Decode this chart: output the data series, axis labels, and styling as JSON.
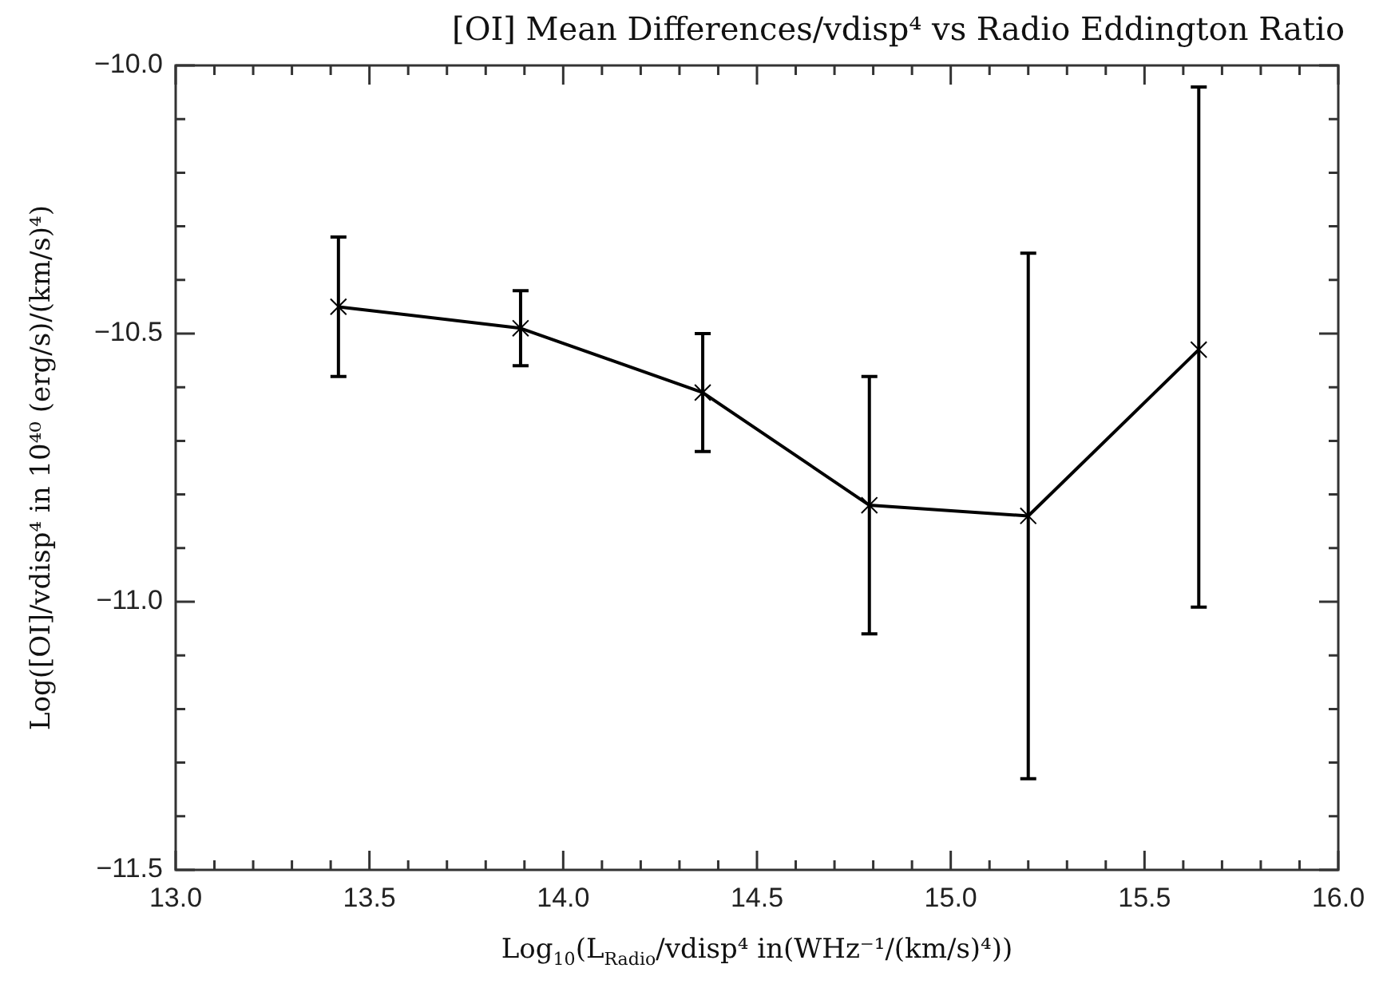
{
  "chart_data": {
    "type": "line",
    "title": "[OI] Mean Differences/vdisp⁴ vs Radio Eddington Ratio",
    "xlabel": "Log$_{10}$(L$_{Radio}$/vdisp⁴ in(WHz⁻¹/(km/s)⁴))",
    "ylabel": "Log([OI]/vdisp⁴ in 10⁴⁰ (erg/s)/(km/s)⁴)",
    "x": [
      13.42,
      13.89,
      14.36,
      14.79,
      15.2,
      15.64
    ],
    "series": [
      {
        "color": "#000000",
        "values": [
          -10.45,
          -10.49,
          -10.61,
          -10.82,
          -10.84,
          -10.53
        ],
        "errors": [
          [
            -10.58,
            -10.32
          ],
          [
            -10.56,
            -10.42
          ],
          [
            -10.72,
            -10.5
          ],
          [
            -11.06,
            -10.58
          ],
          [
            -11.33,
            -10.35
          ],
          [
            -11.01,
            -10.04
          ]
        ]
      }
    ],
    "xlim": [
      13.0,
      16.0
    ],
    "ylim": [
      -11.5,
      -10.0
    ],
    "xticks": [
      {
        "value": 13.0,
        "label": "13.0"
      },
      {
        "value": 13.1,
        "label": null
      },
      {
        "value": 13.2,
        "label": null
      },
      {
        "value": 13.3,
        "label": null
      },
      {
        "value": 13.4,
        "label": null
      },
      {
        "value": 13.5,
        "label": "13.5"
      },
      {
        "value": 13.6,
        "label": null
      },
      {
        "value": 13.7,
        "label": null
      },
      {
        "value": 13.8,
        "label": null
      },
      {
        "value": 13.9,
        "label": null
      },
      {
        "value": 14.0,
        "label": "14.0"
      },
      {
        "value": 14.1,
        "label": null
      },
      {
        "value": 14.2,
        "label": null
      },
      {
        "value": 14.3,
        "label": null
      },
      {
        "value": 14.4,
        "label": null
      },
      {
        "value": 14.5,
        "label": "14.5"
      },
      {
        "value": 14.6,
        "label": null
      },
      {
        "value": 14.7,
        "label": null
      },
      {
        "value": 14.8,
        "label": null
      },
      {
        "value": 14.9,
        "label": null
      },
      {
        "value": 15.0,
        "label": "15.0"
      },
      {
        "value": 15.1,
        "label": null
      },
      {
        "value": 15.2,
        "label": null
      },
      {
        "value": 15.3,
        "label": null
      },
      {
        "value": 15.4,
        "label": null
      },
      {
        "value": 15.5,
        "label": "15.5"
      },
      {
        "value": 15.6,
        "label": null
      },
      {
        "value": 15.7,
        "label": null
      },
      {
        "value": 15.8,
        "label": null
      },
      {
        "value": 15.9,
        "label": null
      },
      {
        "value": 16.0,
        "label": "16.0"
      }
    ],
    "yticks": [
      {
        "value": -11.5,
        "label": "−11.5"
      },
      {
        "value": -11.4,
        "label": null
      },
      {
        "value": -11.3,
        "label": null
      },
      {
        "value": -11.2,
        "label": null
      },
      {
        "value": -11.1,
        "label": null
      },
      {
        "value": -11.0,
        "label": "−11.0"
      },
      {
        "value": -10.9,
        "label": null
      },
      {
        "value": -10.8,
        "label": null
      },
      {
        "value": -10.7,
        "label": null
      },
      {
        "value": -10.6,
        "label": null
      },
      {
        "value": -10.5,
        "label": "−10.5"
      },
      {
        "value": -10.4,
        "label": null
      },
      {
        "value": -10.3,
        "label": null
      },
      {
        "value": -10.2,
        "label": null
      },
      {
        "value": -10.1,
        "label": null
      },
      {
        "value": -10.0,
        "label": "−10.0"
      }
    ],
    "marker": "cross",
    "line_style": "solid",
    "grid": false,
    "legend": false
  }
}
